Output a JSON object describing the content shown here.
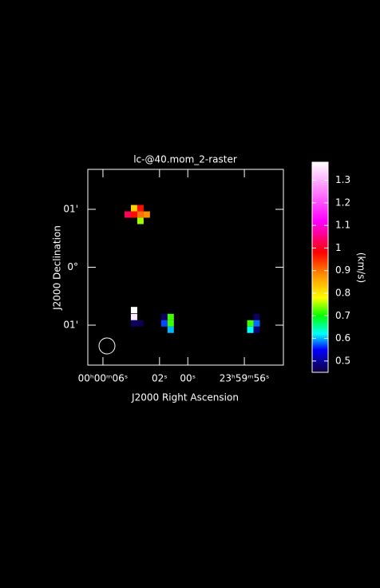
{
  "chart_data": {
    "type": "heatmap",
    "title": "lc-@40.mom_2-raster",
    "xlabel": "J2000 Right Ascension",
    "ylabel": "J2000 Declination",
    "colorbar_label": "(km/s)",
    "xlim": [
      7.07,
      -6.76
    ],
    "xticks": [
      {
        "value": 6,
        "label": "00ʰ00ᵐ06ˢ"
      },
      {
        "value": 2,
        "label": "02ˢ"
      },
      {
        "value": 0,
        "label": "00ˢ"
      },
      {
        "value": -4,
        "label": "23ʰ59ᵐ56ˢ"
      }
    ],
    "ylim": [
      -1.69,
      1.69
    ],
    "yticks": [
      {
        "value": 1,
        "label": "01'"
      },
      {
        "value": 0,
        "label": "0°"
      },
      {
        "value": -1,
        "label": "01'"
      }
    ],
    "clim": [
      0.45,
      1.38
    ],
    "cticks": [
      0.5,
      0.6,
      0.7,
      0.8,
      0.9,
      1,
      1.1,
      1.2,
      1.3
    ],
    "colormap": [
      [
        0.45,
        "#10003a"
      ],
      [
        0.55,
        "#0000ff"
      ],
      [
        0.62,
        "#00ffff"
      ],
      [
        0.7,
        "#00ff00"
      ],
      [
        0.78,
        "#ffff00"
      ],
      [
        0.88,
        "#ff9000"
      ],
      [
        0.98,
        "#ff0000"
      ],
      [
        1.12,
        "#ff00ff"
      ],
      [
        1.38,
        "#ffffff"
      ]
    ],
    "cell_size": [
      0.45,
      0.11
    ],
    "cells": [
      {
        "x": 3.8,
        "y": 1.02,
        "value": 0.82
      },
      {
        "x": 3.35,
        "y": 1.02,
        "value": 0.97
      },
      {
        "x": 4.25,
        "y": 0.91,
        "value": 1.03
      },
      {
        "x": 3.8,
        "y": 0.91,
        "value": 0.97
      },
      {
        "x": 3.35,
        "y": 0.91,
        "value": 0.9
      },
      {
        "x": 2.9,
        "y": 0.91,
        "value": 0.88
      },
      {
        "x": 3.35,
        "y": 0.8,
        "value": 0.75
      },
      {
        "x": 3.8,
        "y": -0.74,
        "value": 1.38
      },
      {
        "x": 3.8,
        "y": -0.86,
        "value": 1.36
      },
      {
        "x": 3.8,
        "y": -0.97,
        "value": 0.47
      },
      {
        "x": 3.35,
        "y": -0.97,
        "value": 0.46
      },
      {
        "x": 1.66,
        "y": -0.86,
        "value": 0.47
      },
      {
        "x": 1.21,
        "y": -0.86,
        "value": 0.72
      },
      {
        "x": 1.66,
        "y": -0.97,
        "value": 0.57
      },
      {
        "x": 1.21,
        "y": -0.97,
        "value": 0.72
      },
      {
        "x": 1.21,
        "y": -1.08,
        "value": 0.6
      },
      {
        "x": -4.87,
        "y": -0.86,
        "value": 0.47
      },
      {
        "x": -4.42,
        "y": -0.97,
        "value": 0.72
      },
      {
        "x": -4.87,
        "y": -0.97,
        "value": 0.58
      },
      {
        "x": -4.42,
        "y": -1.08,
        "value": 0.62
      },
      {
        "x": -4.87,
        "y": -1.08,
        "value": 0.48
      }
    ]
  }
}
